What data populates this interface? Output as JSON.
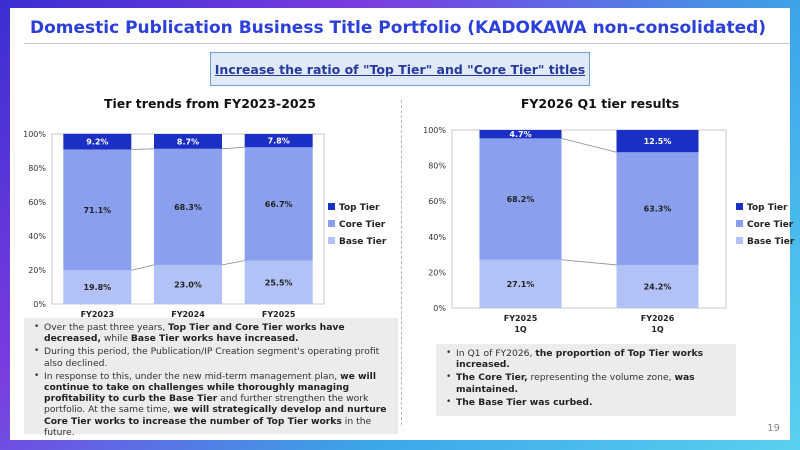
{
  "title": "Domestic Publication Business Title Portfolio (KADOKAWA non-consolidated)",
  "banner": "Increase the ratio of \"Top Tier\" and \"Core Tier\" titles",
  "page_number": "19",
  "colors": {
    "top_tier": "#1a2fc4",
    "core_tier": "#8aa0ef",
    "base_tier": "#b3c2f6",
    "title": "#2c3fd8"
  },
  "chart_data": [
    {
      "type": "bar",
      "stacked": true,
      "title": "Tier trends from FY2023-2025",
      "categories": [
        "FY2023",
        "FY2024",
        "FY2025"
      ],
      "series": [
        {
          "name": "Base Tier",
          "values": [
            19.8,
            23.0,
            25.5
          ],
          "labels": [
            "19.8%",
            "23.0%",
            "25.5%"
          ]
        },
        {
          "name": "Core Tier",
          "values": [
            71.1,
            68.3,
            66.7
          ],
          "labels": [
            "71.1%",
            "68.3%",
            "66.7%"
          ]
        },
        {
          "name": "Top Tier",
          "values": [
            9.2,
            8.7,
            7.8
          ],
          "labels": [
            "9.2%",
            "8.7%",
            "7.8%"
          ]
        }
      ],
      "yticks": [
        "0%",
        "20%",
        "40%",
        "60%",
        "80%",
        "100%"
      ],
      "ylim": [
        0,
        100
      ],
      "legend": [
        "Top Tier",
        "Core Tier",
        "Base Tier"
      ],
      "legend_position": "right"
    },
    {
      "type": "bar",
      "stacked": true,
      "title": "FY2026 Q1 tier results",
      "categories": [
        "FY2025 1Q",
        "FY2026 1Q"
      ],
      "category_lines": [
        [
          "FY2025",
          "1Q"
        ],
        [
          "FY2026",
          "1Q"
        ]
      ],
      "series": [
        {
          "name": "Base Tier",
          "values": [
            27.1,
            24.2
          ],
          "labels": [
            "27.1%",
            "24.2%"
          ]
        },
        {
          "name": "Core Tier",
          "values": [
            68.2,
            63.3
          ],
          "labels": [
            "68.2%",
            "63.3%"
          ]
        },
        {
          "name": "Top Tier",
          "values": [
            4.7,
            12.5
          ],
          "labels": [
            "4.7%",
            "12.5%"
          ]
        }
      ],
      "yticks": [
        "0%",
        "20%",
        "40%",
        "60%",
        "80%",
        "100%"
      ],
      "ylim": [
        0,
        100
      ],
      "legend": [
        "Top Tier",
        "Core Tier",
        "Base Tier"
      ],
      "legend_position": "right"
    }
  ],
  "notes_left": [
    [
      {
        "t": "Over the past three years, ",
        "b": false
      },
      {
        "t": "Top Tier and Core Tier works have decreased,",
        "b": true
      },
      {
        "t": " while ",
        "b": false
      },
      {
        "t": "Base Tier works have increased.",
        "b": true
      }
    ],
    [
      {
        "t": "During this period, the Publication/IP Creation segment's operating profit also declined.",
        "b": false
      }
    ],
    [
      {
        "t": "In response to this, under the new mid-term management plan, ",
        "b": false
      },
      {
        "t": "we will continue to take on challenges while thoroughly managing profitability to curb the Base Tier",
        "b": true
      },
      {
        "t": " and further strengthen the work portfolio. At the same time, ",
        "b": false
      },
      {
        "t": "we will strategically develop and nurture Core Tier works to increase the number of Top Tier works",
        "b": true
      },
      {
        "t": " in the future.",
        "b": false
      }
    ]
  ],
  "notes_right": [
    [
      {
        "t": "In Q1 of FY2026, ",
        "b": false
      },
      {
        "t": "the proportion of Top Tier works increased.",
        "b": true
      }
    ],
    [
      {
        "t": "The Core Tier,",
        "b": true
      },
      {
        "t": " representing the volume zone, ",
        "b": false
      },
      {
        "t": "was maintained.",
        "b": true
      }
    ],
    [
      {
        "t": "The Base Tier was curbed.",
        "b": true
      }
    ]
  ]
}
